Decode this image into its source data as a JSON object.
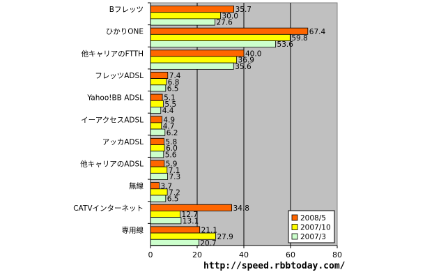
{
  "chart_data": {
    "type": "bar",
    "orientation": "horizontal",
    "categories": [
      "Bフレッツ",
      "ひかりONE",
      "他キャリアのFTTH",
      "フレッツADSL",
      "Yahoo!BB ADSL",
      "イーアクセスADSL",
      "アッカADSL",
      "他キャリアのADSL",
      "無線",
      "CATVインターネット",
      "専用線"
    ],
    "series": [
      {
        "name": "2008/5",
        "color": "#ff6600",
        "values": [
          35.7,
          67.4,
          40.0,
          7.4,
          5.1,
          4.9,
          5.8,
          5.9,
          3.7,
          34.8,
          21.1
        ]
      },
      {
        "name": "2007/10",
        "color": "#ffff00",
        "values": [
          30.0,
          59.8,
          36.9,
          6.8,
          5.5,
          4.7,
          6.0,
          7.1,
          7.2,
          12.7,
          27.9
        ]
      },
      {
        "name": "2007/3",
        "color": "#ccffcc",
        "values": [
          27.6,
          53.6,
          35.6,
          6.5,
          4.4,
          6.2,
          5.6,
          7.3,
          6.5,
          13.1,
          20.7
        ]
      }
    ],
    "value_labels": [
      [
        "35.7",
        "67.4",
        "40.0",
        "7.4",
        "5.1",
        "4.9",
        "5.8",
        "5.9",
        "3.7",
        "34.8",
        "21.1"
      ],
      [
        "30.0",
        "59.8",
        "36.9",
        "6.8",
        "5.5",
        "4.7",
        "6.0",
        "7.1",
        "7.2",
        "12.7",
        "27.9"
      ],
      [
        "27.6",
        "53.6",
        "35.6",
        "6.5",
        "4.4",
        "6.2",
        "5.6",
        "7.3",
        "6.5",
        "13.1",
        "20.7"
      ]
    ],
    "xlim": [
      0,
      80
    ],
    "xticks": [
      "0",
      "20",
      "40",
      "60",
      "80"
    ],
    "plot_background": "#c0c0c0",
    "grid": true,
    "legend_position": "bottom-right"
  },
  "source_text": "http://speed.rbbtoday.com/"
}
